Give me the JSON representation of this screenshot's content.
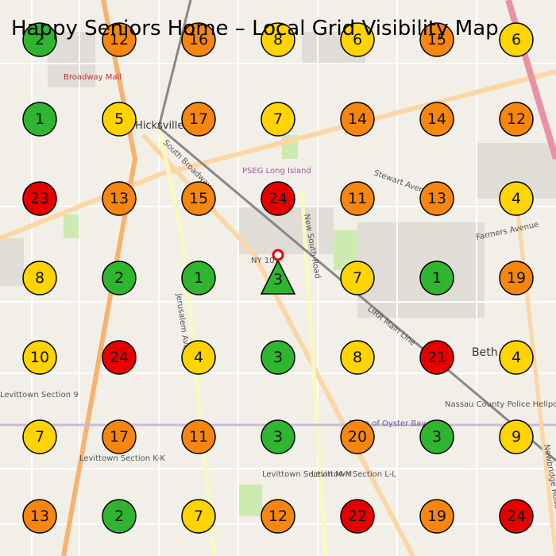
{
  "title": "Happy Seniors Home – Local Grid Visibility Map",
  "palette": {
    "green": "#2fb52f",
    "yellow": "#ffd400",
    "orange": "#f7860f",
    "red": "#e80000"
  },
  "grid": [
    [
      {
        "value": 2,
        "color": "green"
      },
      {
        "value": 12,
        "color": "orange"
      },
      {
        "value": 16,
        "color": "orange"
      },
      {
        "value": 8,
        "color": "yellow"
      },
      {
        "value": 6,
        "color": "yellow"
      },
      {
        "value": 15,
        "color": "orange"
      },
      {
        "value": 6,
        "color": "yellow"
      }
    ],
    [
      {
        "value": 1,
        "color": "green"
      },
      {
        "value": 5,
        "color": "yellow"
      },
      {
        "value": 17,
        "color": "orange"
      },
      {
        "value": 7,
        "color": "yellow"
      },
      {
        "value": 14,
        "color": "orange"
      },
      {
        "value": 14,
        "color": "orange"
      },
      {
        "value": 12,
        "color": "orange"
      }
    ],
    [
      {
        "value": 23,
        "color": "red"
      },
      {
        "value": 13,
        "color": "orange"
      },
      {
        "value": 15,
        "color": "orange"
      },
      {
        "value": 24,
        "color": "red"
      },
      {
        "value": 11,
        "color": "orange"
      },
      {
        "value": 13,
        "color": "orange"
      },
      {
        "value": 4,
        "color": "yellow"
      }
    ],
    [
      {
        "value": 8,
        "color": "yellow"
      },
      {
        "value": 2,
        "color": "green"
      },
      {
        "value": 1,
        "color": "green"
      },
      {
        "value": 3,
        "color": "green",
        "shape": "triangle"
      },
      {
        "value": 7,
        "color": "yellow"
      },
      {
        "value": 1,
        "color": "green"
      },
      {
        "value": 19,
        "color": "orange"
      }
    ],
    [
      {
        "value": 10,
        "color": "yellow"
      },
      {
        "value": 24,
        "color": "red"
      },
      {
        "value": 4,
        "color": "yellow"
      },
      {
        "value": 3,
        "color": "green"
      },
      {
        "value": 8,
        "color": "yellow"
      },
      {
        "value": 21,
        "color": "red"
      },
      {
        "value": 4,
        "color": "yellow"
      }
    ],
    [
      {
        "value": 7,
        "color": "yellow"
      },
      {
        "value": 17,
        "color": "orange"
      },
      {
        "value": 11,
        "color": "orange"
      },
      {
        "value": 3,
        "color": "green"
      },
      {
        "value": 20,
        "color": "orange"
      },
      {
        "value": 3,
        "color": "green"
      },
      {
        "value": 9,
        "color": "yellow"
      }
    ],
    [
      {
        "value": 13,
        "color": "orange"
      },
      {
        "value": 2,
        "color": "green"
      },
      {
        "value": 7,
        "color": "yellow"
      },
      {
        "value": 12,
        "color": "orange"
      },
      {
        "value": 22,
        "color": "red"
      },
      {
        "value": 19,
        "color": "orange"
      },
      {
        "value": 24,
        "color": "red"
      }
    ]
  ],
  "map_labels": [
    "Hicksville",
    "Broadway Mall",
    "South Broadway",
    "Jerusalem Avenue",
    "New South Road",
    "Stewart Avenue",
    "Farmers Avenue",
    "LIRR Main Line",
    "Nassau County Police Heliport",
    "PSEG Long Island",
    "Levittown Section 9",
    "Levittown Section M-M",
    "Levittown Section L-L",
    "Levittown Section K-K",
    "Town of Oyster Bay",
    "Beth",
    "Newbridge Road",
    "NY 107"
  ]
}
